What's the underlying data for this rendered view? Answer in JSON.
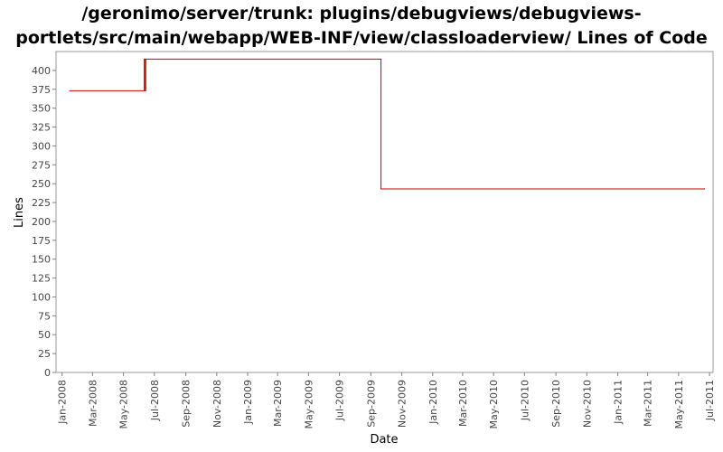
{
  "chart_data": {
    "type": "line",
    "title_lines": [
      "/geronimo/server/trunk: plugins/debugviews/debugviews-",
      "portlets/src/main/webapp/WEB-INF/view/classloaderview/ Lines of Code"
    ],
    "xlabel": "Date",
    "ylabel": "Lines",
    "ylim": [
      0,
      425
    ],
    "y_ticks": [
      0,
      25,
      50,
      75,
      100,
      125,
      150,
      175,
      200,
      225,
      250,
      275,
      300,
      325,
      350,
      375,
      400
    ],
    "x_ticks": [
      "Jan-2008",
      "Mar-2008",
      "May-2008",
      "Jul-2008",
      "Sep-2008",
      "Nov-2008",
      "Jan-2009",
      "Mar-2009",
      "May-2009",
      "Jul-2009",
      "Sep-2009",
      "Nov-2009",
      "Jan-2010",
      "Mar-2010",
      "May-2010",
      "Jul-2010",
      "Sep-2010",
      "Nov-2010",
      "Jan-2011",
      "Mar-2011",
      "May-2011",
      "Jul-2011"
    ],
    "step": true,
    "series": [
      {
        "color": "#cc0000",
        "points": [
          [
            "2008-01-15",
            373
          ],
          [
            "2008-06-10",
            373
          ],
          [
            "2008-06-11",
            415
          ],
          [
            "2008-06-13",
            373
          ],
          [
            "2008-06-14",
            415
          ],
          [
            "2009-09-20",
            415
          ],
          [
            "2009-09-21",
            243
          ],
          [
            "2011-06-20",
            243
          ],
          [
            "2011-06-21",
            244
          ]
        ]
      }
    ],
    "grid": false,
    "plot_background": "#ffffff",
    "axis_color": "#808080"
  }
}
